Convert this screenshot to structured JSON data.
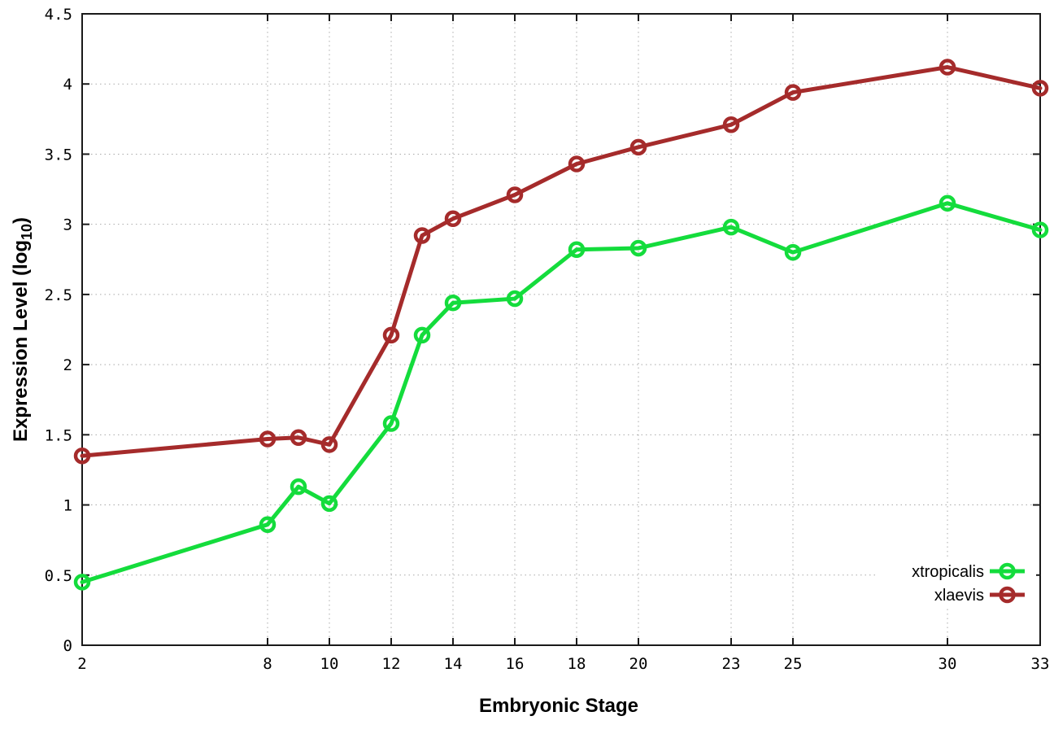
{
  "chart_data": {
    "type": "line",
    "title": "",
    "xlabel": "Embryonic Stage",
    "ylabel": "Expression Level (log10)",
    "ylabel_parts": {
      "pre": "Expression Level (log",
      "sub": "10",
      "post": ")"
    },
    "xlim": [
      2,
      33
    ],
    "ylim": [
      0,
      4.5
    ],
    "x_ticks": [
      2,
      8,
      10,
      12,
      14,
      16,
      18,
      20,
      23,
      25,
      30,
      33
    ],
    "y_ticks": [
      0,
      0.5,
      1,
      1.5,
      2,
      2.5,
      3,
      3.5,
      4,
      4.5
    ],
    "grid": "dotted",
    "legend_position": "bottom-right",
    "marker": "open-circle",
    "x": [
      2,
      8,
      9,
      10,
      12,
      13,
      14,
      16,
      18,
      20,
      23,
      25,
      30,
      33
    ],
    "series": [
      {
        "name": "xtropicalis",
        "color": "#14dc3c",
        "values": [
          0.45,
          0.86,
          1.13,
          1.01,
          1.58,
          2.21,
          2.44,
          2.47,
          2.82,
          2.83,
          2.98,
          2.8,
          3.15,
          2.96
        ]
      },
      {
        "name": "xlaevis",
        "color": "#a52b2b",
        "values": [
          1.35,
          1.47,
          1.48,
          1.43,
          2.21,
          2.92,
          3.04,
          3.21,
          3.43,
          3.55,
          3.71,
          3.94,
          4.12,
          3.97
        ]
      }
    ]
  },
  "colors": {
    "background": "#ffffff",
    "axis": "#1a1a1a",
    "grid": "#a9a9a9",
    "text": "#000000"
  }
}
